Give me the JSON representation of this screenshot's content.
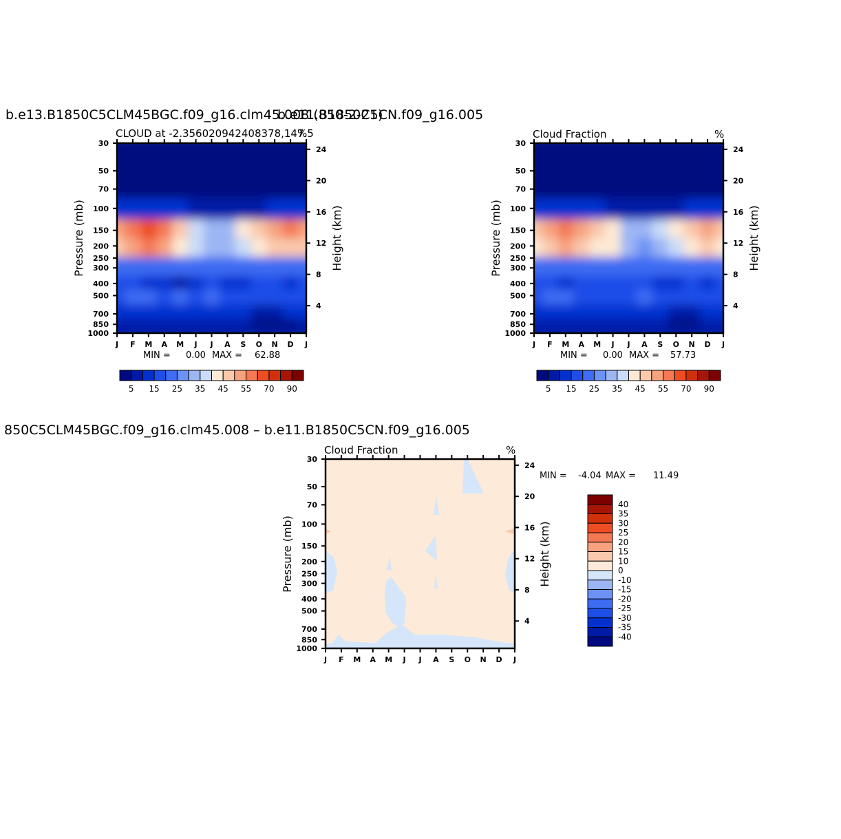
{
  "chart_data": [
    {
      "type": "heatmap",
      "case_title": "b.e13.B1850C5CLM45BGC.f09_g16.clm45.008 (850-2-21)",
      "title": "CLOUD  at  -2.356020942408378,147.5",
      "units_label": "%",
      "ylabel": "Pressure  (mb)",
      "ylabel_right": "Height  (km)",
      "x_ticks": [
        "J",
        "F",
        "M",
        "A",
        "M",
        "J",
        "J",
        "A",
        "S",
        "O",
        "N",
        "D",
        "J"
      ],
      "y_ticks": [
        30,
        50,
        70,
        100,
        150,
        200,
        250,
        300,
        400,
        500,
        700,
        850,
        1000
      ],
      "y_ticks_right": [
        24,
        20,
        16,
        12,
        8,
        4
      ],
      "min_label": "MIN =",
      "min_value": "0.00",
      "max_label": "MAX =",
      "max_value": "62.88",
      "min": 0.0,
      "max": 62.88,
      "colorbar_labels": [
        "5",
        "15",
        "25",
        "35",
        "45",
        "55",
        "70",
        "90"
      ],
      "levels": [
        5,
        10,
        15,
        20,
        25,
        30,
        35,
        40,
        45,
        50,
        55,
        60,
        70,
        80,
        90
      ],
      "colors": [
        "#00097f",
        "#001aa8",
        "#0430d0",
        "#1e4ee8",
        "#3e6cf2",
        "#6c92f5",
        "#9cb6f4",
        "#cadcf8",
        "#fde9d6",
        "#fac8ab",
        "#f7a27f",
        "#f47854",
        "#ee4c22",
        "#d1300c",
        "#a61506",
        "#7d0000"
      ],
      "cloud_profile_pressure_mb": [
        30,
        50,
        70,
        100,
        150,
        200,
        300,
        400,
        500,
        700,
        850,
        1000
      ],
      "cloud_field": [
        [
          0,
          0,
          0,
          0,
          0,
          0,
          0,
          0,
          0,
          0,
          0,
          0,
          0
        ],
        [
          0,
          0,
          0,
          0,
          0,
          0,
          0,
          0,
          0,
          0,
          0,
          0,
          0
        ],
        [
          1,
          1,
          1,
          1,
          1,
          1,
          1,
          0,
          1,
          1,
          1,
          2,
          2
        ],
        [
          14,
          12,
          12,
          12,
          10,
          8,
          6,
          6,
          7,
          9,
          12,
          14,
          14
        ],
        [
          52,
          56,
          62,
          58,
          46,
          38,
          32,
          34,
          40,
          45,
          50,
          55,
          52
        ],
        [
          45,
          50,
          55,
          52,
          42,
          35,
          30,
          30,
          35,
          40,
          45,
          48,
          45
        ],
        [
          22,
          20,
          22,
          22,
          24,
          24,
          22,
          22,
          22,
          22,
          24,
          24,
          22
        ],
        [
          18,
          16,
          14,
          14,
          8,
          14,
          16,
          14,
          10,
          18,
          16,
          14,
          18
        ],
        [
          17,
          22,
          20,
          18,
          20,
          16,
          22,
          18,
          16,
          18,
          16,
          17,
          17
        ],
        [
          12,
          12,
          14,
          14,
          12,
          12,
          10,
          12,
          12,
          8,
          8,
          10,
          12
        ],
        [
          6,
          8,
          8,
          8,
          6,
          8,
          6,
          6,
          6,
          4,
          4,
          4,
          6
        ],
        [
          6,
          6,
          6,
          6,
          6,
          6,
          6,
          6,
          6,
          6,
          6,
          6,
          6
        ]
      ]
    },
    {
      "type": "heatmap",
      "case_title": "b.e11.B1850C5CN.f09_g16.005",
      "title": "Cloud  Fraction",
      "units_label": "%",
      "ylabel": "Pressure  (mb)",
      "ylabel_right": "Height  (km)",
      "x_ticks": [
        "J",
        "F",
        "M",
        "A",
        "M",
        "J",
        "J",
        "A",
        "S",
        "O",
        "N",
        "D",
        "J"
      ],
      "y_ticks": [
        30,
        50,
        70,
        100,
        150,
        200,
        250,
        300,
        400,
        500,
        700,
        850,
        1000
      ],
      "y_ticks_right": [
        24,
        20,
        16,
        12,
        8,
        4
      ],
      "min_label": "MIN =",
      "min_value": "0.00",
      "max_label": "MAX =",
      "max_value": "57.73",
      "min": 0.0,
      "max": 57.73,
      "colorbar_labels": [
        "5",
        "15",
        "25",
        "35",
        "45",
        "55",
        "70",
        "90"
      ],
      "levels": [
        5,
        10,
        15,
        20,
        25,
        30,
        35,
        40,
        45,
        50,
        55,
        60,
        70,
        80,
        90
      ],
      "colors": [
        "#00097f",
        "#001aa8",
        "#0430d0",
        "#1e4ee8",
        "#3e6cf2",
        "#6c92f5",
        "#9cb6f4",
        "#cadcf8",
        "#fde9d6",
        "#fac8ab",
        "#f7a27f",
        "#f47854",
        "#ee4c22",
        "#d1300c",
        "#a61506",
        "#7d0000"
      ],
      "cloud_profile_pressure_mb": [
        30,
        50,
        70,
        100,
        150,
        200,
        300,
        400,
        500,
        700,
        850,
        1000
      ],
      "cloud_field": [
        [
          0,
          0,
          0,
          0,
          0,
          0,
          0,
          0,
          0,
          0,
          0,
          0,
          0
        ],
        [
          0,
          0,
          0,
          0,
          0,
          0,
          0,
          0,
          0,
          0,
          0,
          0,
          0
        ],
        [
          1,
          1,
          1,
          1,
          1,
          1,
          1,
          0,
          1,
          1,
          1,
          2,
          2
        ],
        [
          12,
          12,
          12,
          12,
          10,
          8,
          6,
          6,
          7,
          9,
          12,
          14,
          12
        ],
        [
          48,
          50,
          56,
          52,
          46,
          40,
          34,
          32,
          36,
          42,
          46,
          52,
          48
        ],
        [
          42,
          45,
          50,
          48,
          44,
          40,
          30,
          28,
          32,
          38,
          42,
          46,
          42
        ],
        [
          20,
          20,
          22,
          22,
          22,
          22,
          22,
          20,
          20,
          22,
          22,
          22,
          20
        ],
        [
          16,
          16,
          12,
          16,
          16,
          16,
          16,
          16,
          14,
          10,
          16,
          14,
          16
        ],
        [
          16,
          20,
          22,
          18,
          18,
          18,
          18,
          20,
          18,
          16,
          18,
          16,
          16
        ],
        [
          14,
          12,
          12,
          12,
          12,
          12,
          12,
          12,
          10,
          8,
          8,
          12,
          14
        ],
        [
          6,
          8,
          8,
          8,
          8,
          8,
          8,
          8,
          6,
          4,
          4,
          6,
          6
        ],
        [
          6,
          6,
          6,
          6,
          6,
          6,
          6,
          6,
          6,
          6,
          6,
          6,
          6
        ]
      ]
    },
    {
      "type": "heatmap",
      "case_title": "850C5CLM45BGC.f09_g16.clm45.008  –  b.e11.B1850C5CN.f09_g16.005",
      "title": "Cloud  Fraction",
      "units_label": "%",
      "ylabel": "Pressure  (mb)",
      "ylabel_right": "Height  (km)",
      "x_ticks": [
        "J",
        "F",
        "M",
        "A",
        "M",
        "J",
        "J",
        "A",
        "S",
        "O",
        "N",
        "D",
        "J"
      ],
      "y_ticks": [
        30,
        50,
        70,
        100,
        150,
        200,
        250,
        300,
        400,
        500,
        700,
        850,
        1000
      ],
      "y_ticks_right": [
        24,
        20,
        16,
        12,
        8,
        4
      ],
      "min_label": "MIN =",
      "min_value": "-4.04",
      "max_label": "MAX =",
      "max_value": "11.49",
      "min": -4.04,
      "max": 11.49,
      "colorbar_labels": [
        "40",
        "35",
        "30",
        "25",
        "20",
        "15",
        "10",
        "0",
        "-10",
        "-15",
        "-20",
        "-25",
        "-30",
        "-35",
        "-40"
      ],
      "levels": [
        -40,
        -35,
        -30,
        -25,
        -20,
        -15,
        -10,
        0,
        10,
        15,
        20,
        25,
        30,
        35,
        40
      ],
      "colors": [
        "#00097f",
        "#001aa8",
        "#0430d0",
        "#1e4ee8",
        "#3e6cf2",
        "#6c92f5",
        "#9cb6f4",
        "#d6e6fa",
        "#fdead8",
        "#fac8ab",
        "#f7a27f",
        "#f47854",
        "#ee4c22",
        "#d1300c",
        "#a61506",
        "#7d0000"
      ]
    }
  ]
}
